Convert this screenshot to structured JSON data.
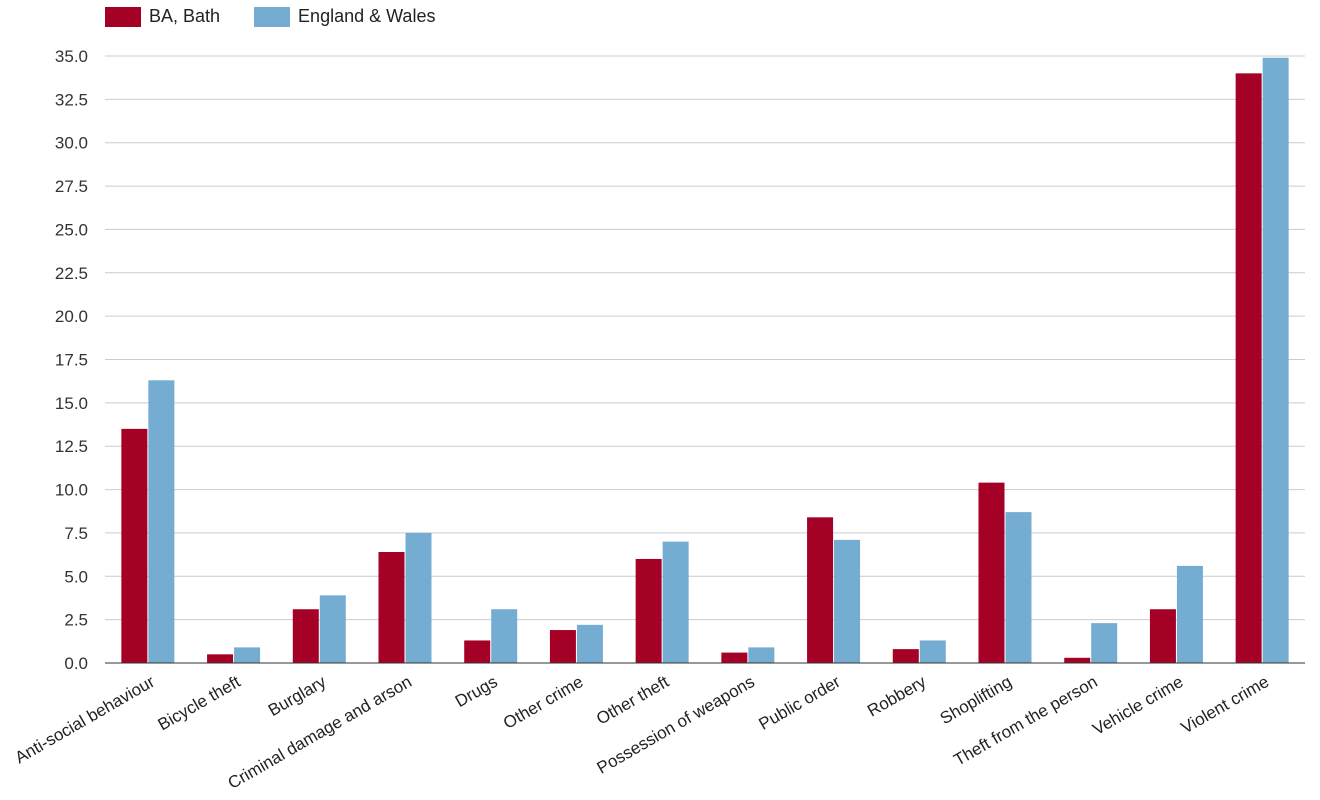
{
  "chart_data": {
    "type": "bar",
    "title": "",
    "xlabel": "",
    "ylabel": "",
    "ylim": [
      0,
      35
    ],
    "yticks": [
      "0.0",
      "2.5",
      "5.0",
      "7.5",
      "10.0",
      "12.5",
      "15.0",
      "17.5",
      "20.0",
      "22.5",
      "25.0",
      "27.5",
      "30.0",
      "32.5",
      "35.0"
    ],
    "grid": true,
    "legend_position": "top-left",
    "categories": [
      "Anti-social behaviour",
      "Bicycle theft",
      "Burglary",
      "Criminal damage and arson",
      "Drugs",
      "Other crime",
      "Other theft",
      "Possession of weapons",
      "Public order",
      "Robbery",
      "Shoplifting",
      "Theft from the person",
      "Vehicle crime",
      "Violent crime"
    ],
    "series": [
      {
        "name": "BA, Bath",
        "color": "#a50026",
        "values": [
          13.5,
          0.5,
          3.1,
          6.4,
          1.3,
          1.9,
          6.0,
          0.6,
          8.4,
          0.8,
          10.4,
          0.3,
          3.1,
          34.0
        ]
      },
      {
        "name": "England & Wales",
        "color": "#74add1",
        "values": [
          16.3,
          0.9,
          3.9,
          7.5,
          3.1,
          2.2,
          7.0,
          0.9,
          7.1,
          1.3,
          8.7,
          2.3,
          5.6,
          34.9
        ]
      }
    ]
  }
}
